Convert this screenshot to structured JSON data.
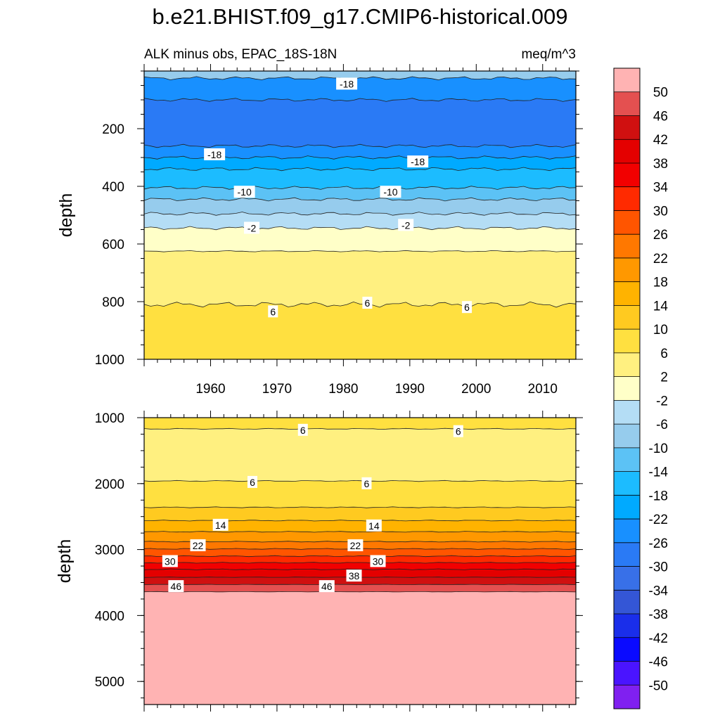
{
  "title": "b.e21.BHIST.f09_g17.CMIP6-historical.009",
  "subtitle_left": "ALK minus obs, EPAC_18S-18N",
  "subtitle_right": "meq/m^3",
  "chart_data": [
    {
      "type": "heatmap",
      "panel": "upper",
      "ylabel": "depth",
      "xlim": [
        1950,
        2015
      ],
      "ylim": [
        1000,
        0
      ],
      "x_ticks": [
        1960,
        1970,
        1980,
        1990,
        2000,
        2010
      ],
      "y_ticks": [
        200,
        400,
        600,
        800,
        1000
      ],
      "layers": [
        {
          "from": 0,
          "to": 25,
          "value": -6
        },
        {
          "from": 25,
          "to": 100,
          "value": -22
        },
        {
          "from": 100,
          "to": 260,
          "value": -26
        },
        {
          "from": 260,
          "to": 300,
          "value": -22
        },
        {
          "from": 300,
          "to": 340,
          "value": -18
        },
        {
          "from": 340,
          "to": 405,
          "value": -14
        },
        {
          "from": 405,
          "to": 445,
          "value": -10
        },
        {
          "from": 445,
          "to": 495,
          "value": -6
        },
        {
          "from": 495,
          "to": 545,
          "value": -2
        },
        {
          "from": 545,
          "to": 625,
          "value": 2
        },
        {
          "from": 625,
          "to": 810,
          "value": 6
        },
        {
          "from": 810,
          "to": 1000,
          "value": 8
        }
      ],
      "contour_labels": [
        {
          "text": "-18",
          "x": 1980.5,
          "y": 45
        },
        {
          "text": "-18",
          "x": 1960.6,
          "y": 290
        },
        {
          "text": "-18",
          "x": 1991.2,
          "y": 315
        },
        {
          "text": "-10",
          "x": 1965.1,
          "y": 420
        },
        {
          "text": "-10",
          "x": 1987.1,
          "y": 420
        },
        {
          "text": "-2",
          "x": 1966.2,
          "y": 545
        },
        {
          "text": "-2",
          "x": 1989.4,
          "y": 535
        },
        {
          "text": "6",
          "x": 1969.4,
          "y": 835
        },
        {
          "text": "6",
          "x": 1983.6,
          "y": 805
        },
        {
          "text": "6",
          "x": 1998.6,
          "y": 820
        }
      ]
    },
    {
      "type": "heatmap",
      "panel": "lower",
      "ylabel": "depth",
      "xlim": [
        1950,
        2015
      ],
      "ylim": [
        5350,
        1000
      ],
      "y_ticks": [
        1000,
        2000,
        3000,
        4000,
        5000
      ],
      "layers": [
        {
          "from": 1000,
          "to": 1170,
          "value": 8
        },
        {
          "from": 1170,
          "to": 1960,
          "value": 4
        },
        {
          "from": 1960,
          "to": 2360,
          "value": 8
        },
        {
          "from": 2360,
          "to": 2560,
          "value": 12
        },
        {
          "from": 2560,
          "to": 2730,
          "value": 16
        },
        {
          "from": 2730,
          "to": 2880,
          "value": 20
        },
        {
          "from": 2880,
          "to": 2990,
          "value": 24
        },
        {
          "from": 2990,
          "to": 3100,
          "value": 28
        },
        {
          "from": 3100,
          "to": 3200,
          "value": 32
        },
        {
          "from": 3200,
          "to": 3300,
          "value": 36
        },
        {
          "from": 3300,
          "to": 3420,
          "value": 40
        },
        {
          "from": 3420,
          "to": 3530,
          "value": 44
        },
        {
          "from": 3530,
          "to": 3640,
          "value": 48
        },
        {
          "from": 3640,
          "to": 5350,
          "value": 52
        }
      ],
      "contour_labels": [
        {
          "text": "6",
          "x": 1973.9,
          "y": 1190
        },
        {
          "text": "6",
          "x": 1997.3,
          "y": 1210
        },
        {
          "text": "6",
          "x": 1966.3,
          "y": 1980
        },
        {
          "text": "6",
          "x": 1983.5,
          "y": 2000
        },
        {
          "text": "14",
          "x": 1961.5,
          "y": 2630
        },
        {
          "text": "14",
          "x": 1984.6,
          "y": 2640
        },
        {
          "text": "22",
          "x": 1958.1,
          "y": 2940
        },
        {
          "text": "22",
          "x": 1981.8,
          "y": 2940
        },
        {
          "text": "30",
          "x": 1953.9,
          "y": 3180
        },
        {
          "text": "30",
          "x": 1985.2,
          "y": 3180
        },
        {
          "text": "38",
          "x": 1981.6,
          "y": 3400
        },
        {
          "text": "46",
          "x": 1954.8,
          "y": 3560
        },
        {
          "text": "46",
          "x": 1977.5,
          "y": 3560
        }
      ]
    }
  ],
  "colorbar": {
    "labels": [
      50,
      46,
      42,
      38,
      34,
      30,
      26,
      22,
      18,
      14,
      10,
      6,
      2,
      -2,
      -6,
      -10,
      -14,
      -18,
      -22,
      -26,
      -30,
      -34,
      -38,
      -42,
      -46,
      -50
    ],
    "colors": [
      "#ffb3b3",
      "#e45050",
      "#d01010",
      "#e40000",
      "#f20000",
      "#ff2a00",
      "#ff5500",
      "#ff7800",
      "#ff9800",
      "#ffb300",
      "#ffca20",
      "#ffe040",
      "#fff080",
      "#ffffc8",
      "#b4ddf5",
      "#96cced",
      "#5cc2f5",
      "#1cbcff",
      "#00aaff",
      "#1890ff",
      "#2a7af5",
      "#3870e8",
      "#3456d6",
      "#1a2eea",
      "#0a0aff",
      "#4a14ff",
      "#8020f0"
    ]
  }
}
